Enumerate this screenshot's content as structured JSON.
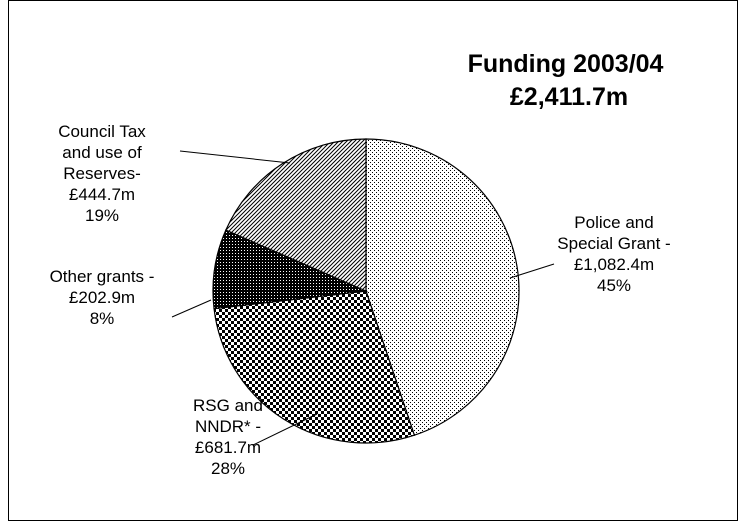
{
  "chart_data": {
    "type": "pie",
    "title": [
      "Funding 2003/04",
      "£2,411.7m"
    ],
    "slices": [
      {
        "name": "Police and Special Grant",
        "label_lines": [
          "Police and",
          "Special Grant -",
          "£1,082.4m",
          "45%"
        ],
        "value": 1082.4,
        "percent": "45%",
        "pattern": "fine-dots"
      },
      {
        "name": "RSG and NNDR*",
        "label_lines": [
          "RSG and",
          "NNDR* -",
          "£681.7m",
          "28%"
        ],
        "value": 681.7,
        "percent": "28%",
        "pattern": "checker"
      },
      {
        "name": "Other grants",
        "label_lines": [
          "Other grants -",
          "£202.9m",
          "8%"
        ],
        "value": 202.9,
        "percent": "8%",
        "pattern": "dense-dark"
      },
      {
        "name": "Council Tax and use of Reserves",
        "label_lines": [
          "Council Tax",
          "and use of",
          "Reserves-",
          "£444.7m",
          "19%"
        ],
        "value": 444.7,
        "percent": "19%",
        "pattern": "diagonal"
      }
    ]
  }
}
